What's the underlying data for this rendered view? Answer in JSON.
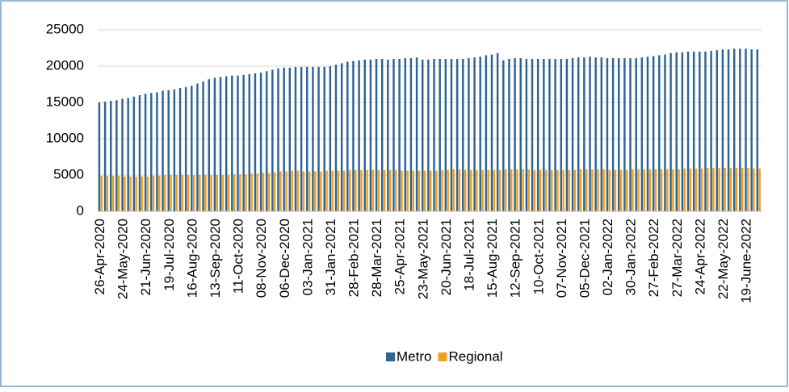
{
  "chart_data": {
    "type": "bar",
    "categories": [
      "26-Apr-2020",
      null,
      null,
      null,
      "24-May-2020",
      null,
      null,
      null,
      "21-Jun-2020",
      null,
      null,
      null,
      "19-Jul-2020",
      null,
      null,
      null,
      "16-Aug-2020",
      null,
      null,
      null,
      "13-Sep-2020",
      null,
      null,
      null,
      "11-Oct-2020",
      null,
      null,
      null,
      "08-Nov-2020",
      null,
      null,
      null,
      "06-Dec-2020",
      null,
      null,
      null,
      "03-Jan-2021",
      null,
      null,
      null,
      "31-Jan-2021",
      null,
      null,
      null,
      "28-Feb-2021",
      null,
      null,
      null,
      "28-Mar-2021",
      null,
      null,
      null,
      "25-Apr-2021",
      null,
      null,
      null,
      "23-May-2021",
      null,
      null,
      null,
      "20-Jun-2021",
      null,
      null,
      null,
      "18-Jul-2021",
      null,
      null,
      null,
      "15-Aug-2021",
      null,
      null,
      null,
      "12-Sep-2021",
      null,
      null,
      null,
      "10-Oct-2021",
      null,
      null,
      null,
      "07-Nov-2021",
      null,
      null,
      null,
      "05-Dec-2021",
      null,
      null,
      null,
      "02-Jan-2022",
      null,
      null,
      null,
      "30-Jan-2022",
      null,
      null,
      null,
      "27-Feb-2022",
      null,
      null,
      null,
      "27-Mar-2022",
      null,
      null,
      null,
      "24-Apr-2022",
      null,
      null,
      null,
      "22-May-2022",
      null,
      null,
      null,
      "19-June-2022",
      null,
      null
    ],
    "series": [
      {
        "name": "Metro",
        "color": "#2e6494",
        "values": [
          15000,
          15100,
          15200,
          15300,
          15500,
          15600,
          15800,
          16000,
          16200,
          16300,
          16400,
          16600,
          16700,
          16800,
          17000,
          17100,
          17300,
          17600,
          17900,
          18200,
          18400,
          18500,
          18600,
          18700,
          18700,
          18800,
          18900,
          19000,
          19100,
          19300,
          19500,
          19700,
          19800,
          19800,
          19900,
          19900,
          19900,
          19900,
          19900,
          19900,
          20000,
          20200,
          20400,
          20600,
          20700,
          20800,
          20900,
          20900,
          21000,
          21000,
          20900,
          21000,
          21000,
          21100,
          21100,
          21200,
          20900,
          20900,
          21000,
          21000,
          21000,
          21000,
          21000,
          21000,
          21100,
          21200,
          21300,
          21500,
          21600,
          21800,
          20800,
          21000,
          21100,
          21100,
          21000,
          21000,
          21000,
          21000,
          21000,
          21000,
          21000,
          21000,
          21100,
          21200,
          21200,
          21300,
          21200,
          21200,
          21100,
          21100,
          21100,
          21100,
          21100,
          21100,
          21200,
          21300,
          21400,
          21500,
          21600,
          21800,
          21900,
          21900,
          22000,
          22000,
          22000,
          22000,
          22100,
          22200,
          22300,
          22300,
          22400,
          22400,
          22400,
          22300,
          22300
        ]
      },
      {
        "name": "Regional",
        "color": "#f0a020",
        "values": [
          4900,
          4900,
          4900,
          4900,
          4800,
          4800,
          4800,
          4800,
          4800,
          4900,
          4900,
          5000,
          5000,
          5000,
          5000,
          5000,
          5000,
          5000,
          5000,
          5000,
          5000,
          5000,
          5000,
          5100,
          5100,
          5100,
          5200,
          5200,
          5300,
          5300,
          5400,
          5500,
          5500,
          5600,
          5600,
          5500,
          5500,
          5500,
          5500,
          5600,
          5600,
          5600,
          5600,
          5700,
          5700,
          5700,
          5700,
          5700,
          5700,
          5700,
          5700,
          5700,
          5600,
          5600,
          5600,
          5600,
          5600,
          5600,
          5600,
          5700,
          5700,
          5800,
          5800,
          5700,
          5700,
          5700,
          5700,
          5700,
          5700,
          5700,
          5800,
          5800,
          5800,
          5800,
          5800,
          5700,
          5700,
          5700,
          5700,
          5700,
          5700,
          5700,
          5700,
          5800,
          5800,
          5800,
          5800,
          5800,
          5700,
          5700,
          5700,
          5700,
          5800,
          5800,
          5800,
          5800,
          5800,
          5800,
          5800,
          5800,
          5800,
          5900,
          5900,
          5900,
          5900,
          6000,
          6000,
          6000,
          6000,
          6000,
          6000,
          6000,
          6000,
          5900,
          5900
        ]
      }
    ],
    "ylim": [
      0,
      25000
    ],
    "yticks": [
      0,
      5000,
      10000,
      15000,
      20000,
      25000
    ],
    "grid": true,
    "legend": "bottom"
  }
}
